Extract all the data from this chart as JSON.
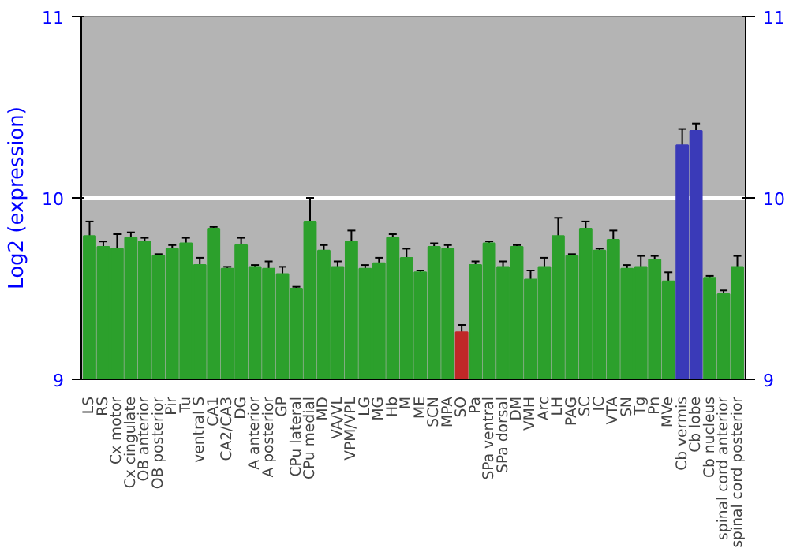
{
  "chart_data": {
    "type": "bar",
    "ylabel": "Log2 (expression)",
    "categories": [
      "LS",
      "RS",
      "Cx motor",
      "Cx cingulate",
      "OB anterior",
      "OB posterior",
      "Pir",
      "Tu",
      "ventral S",
      "CA1",
      "CA2/CA3",
      "DG",
      "A anterior",
      "A posterior",
      "GP",
      "CPu lateral",
      "CPu medial",
      "MD",
      "VA/VL",
      "VPM/VPL",
      "LG",
      "MG",
      "Hb",
      "M",
      "ME",
      "SCN",
      "MPA",
      "SO",
      "Pa",
      "SPa ventral",
      "SPa dorsal",
      "DM",
      "VMH",
      "Arc",
      "LH",
      "PAG",
      "SC",
      "IC",
      "VTA",
      "SN",
      "Tg",
      "Pn",
      "MVe",
      "Cb vermis",
      "Cb lobe",
      "Cb nucleus",
      "spinal cord anterior",
      "spinal cord posterior"
    ],
    "values": [
      9.79,
      9.73,
      9.72,
      9.78,
      9.76,
      9.68,
      9.72,
      9.75,
      9.63,
      9.83,
      9.61,
      9.74,
      9.62,
      9.61,
      9.58,
      9.5,
      9.87,
      9.71,
      9.62,
      9.76,
      9.61,
      9.64,
      9.78,
      9.67,
      9.59,
      9.73,
      9.72,
      9.26,
      9.63,
      9.75,
      9.62,
      9.73,
      9.55,
      9.62,
      9.79,
      9.68,
      9.83,
      9.71,
      9.77,
      9.61,
      9.62,
      9.66,
      9.54,
      10.29,
      10.37,
      9.56,
      9.47,
      9.62
    ],
    "errors": [
      0.08,
      0.03,
      0.08,
      0.03,
      0.02,
      0.01,
      0.02,
      0.03,
      0.04,
      0.01,
      0.01,
      0.04,
      0.01,
      0.04,
      0.04,
      0.01,
      0.13,
      0.03,
      0.03,
      0.06,
      0.02,
      0.03,
      0.02,
      0.05,
      0.01,
      0.02,
      0.02,
      0.04,
      0.02,
      0.01,
      0.03,
      0.01,
      0.05,
      0.05,
      0.1,
      0.01,
      0.04,
      0.01,
      0.05,
      0.02,
      0.06,
      0.02,
      0.05,
      0.09,
      0.04,
      0.01,
      0.02,
      0.06
    ],
    "colors": [
      "#2ca02c",
      "#2ca02c",
      "#2ca02c",
      "#2ca02c",
      "#2ca02c",
      "#2ca02c",
      "#2ca02c",
      "#2ca02c",
      "#2ca02c",
      "#2ca02c",
      "#2ca02c",
      "#2ca02c",
      "#2ca02c",
      "#2ca02c",
      "#2ca02c",
      "#2ca02c",
      "#2ca02c",
      "#2ca02c",
      "#2ca02c",
      "#2ca02c",
      "#2ca02c",
      "#2ca02c",
      "#2ca02c",
      "#2ca02c",
      "#2ca02c",
      "#2ca02c",
      "#2ca02c",
      "#c02828",
      "#2ca02c",
      "#2ca02c",
      "#2ca02c",
      "#2ca02c",
      "#2ca02c",
      "#2ca02c",
      "#2ca02c",
      "#2ca02c",
      "#2ca02c",
      "#2ca02c",
      "#2ca02c",
      "#2ca02c",
      "#2ca02c",
      "#2ca02c",
      "#2ca02c",
      "#3a3ab8",
      "#3a3ab8",
      "#2ca02c",
      "#2ca02c",
      "#2ca02c"
    ],
    "ylim": [
      9,
      11
    ],
    "yticks": [
      9,
      10,
      11
    ],
    "y2lim": [
      9,
      11
    ],
    "y2ticks": [
      9,
      10,
      11
    ],
    "grid": "y"
  }
}
